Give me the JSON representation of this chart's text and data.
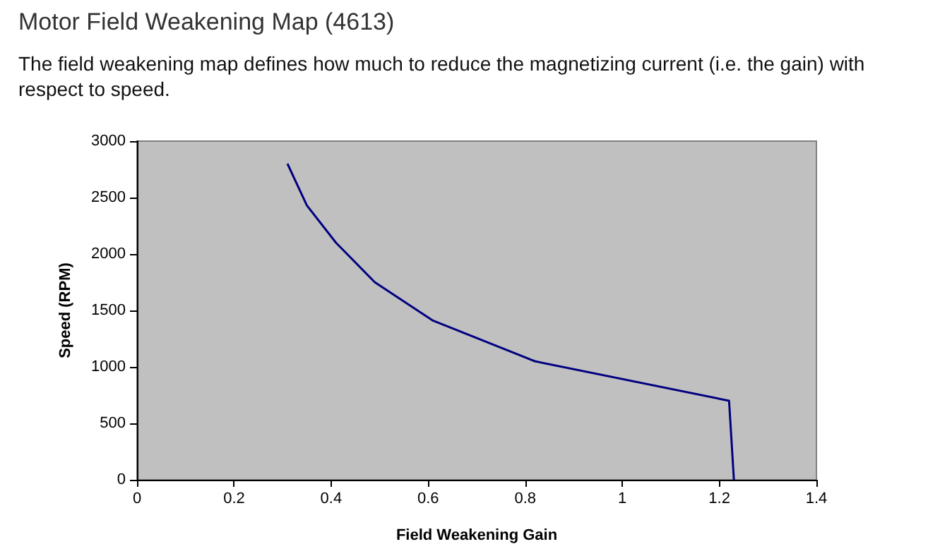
{
  "chart_data": {
    "type": "line",
    "title": "Motor Field Weakening Map (4613)",
    "subtitle": "The field weakening map defines how much to reduce the magnetizing current (i.e. the gain) with respect to speed.",
    "xlabel": "Field Weakening Gain",
    "ylabel": "Speed (RPM)",
    "x": [
      0.31,
      0.35,
      0.41,
      0.49,
      0.61,
      0.82,
      1.22,
      1.23
    ],
    "series": [
      {
        "color": "#000080",
        "values": [
          2800,
          2430,
          2100,
          1750,
          1410,
          1050,
          700,
          0
        ]
      }
    ],
    "xlim": [
      0,
      1.4
    ],
    "xticks": [
      0,
      0.2,
      0.4,
      0.6,
      0.8,
      1,
      1.2,
      1.4
    ],
    "ylim": [
      0,
      3000
    ],
    "yticks": [
      0,
      500,
      1000,
      1500,
      2000,
      2500,
      3000
    ],
    "grid": false,
    "marker": "none"
  }
}
